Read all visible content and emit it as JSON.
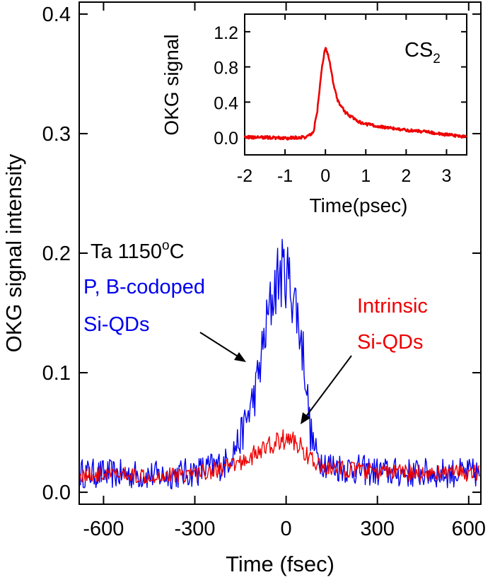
{
  "chart_data": [
    {
      "type": "line",
      "xlabel": "Time (fsec)",
      "ylabel": "OKG signal intensity",
      "xlim": [
        -680,
        640
      ],
      "ylim": [
        -0.01,
        0.41
      ],
      "xticks": [
        -600,
        -300,
        0,
        300,
        600
      ],
      "yticks": [
        0.0,
        0.1,
        0.2,
        0.3,
        0.4
      ],
      "xtick_labels": [
        "-600",
        "-300",
        "0",
        "300",
        "600"
      ],
      "ytick_labels": [
        "0.0",
        "0.1",
        "0.2",
        "0.3",
        "0.4"
      ],
      "annotations": {
        "sample": "Ta 1150",
        "sample_sup": "o",
        "sample_unit": "C",
        "blue_line1": "P, B-codoped",
        "blue_line2": "Si-QDs",
        "red_line1": "Intrinsic",
        "red_line2": "Si-QDs"
      },
      "series": [
        {
          "color": "#0000ee",
          "envelope": {
            "x": [
              -680,
              -400,
              -300,
              -200,
              -150,
              -100,
              -60,
              -30,
              0,
              30,
              60,
              80,
              100,
              150,
              200,
              300,
              400,
              500,
              640
            ],
            "y": [
              0.016,
              0.014,
              0.017,
              0.024,
              0.045,
              0.085,
              0.145,
              0.18,
              0.185,
              0.16,
              0.11,
              0.05,
              0.03,
              0.022,
              0.02,
              0.017,
              0.016,
              0.016,
              0.016
            ]
          },
          "noise": 0.018
        },
        {
          "color": "#ee0000",
          "envelope": {
            "x": [
              -680,
              -400,
              -300,
              -200,
              -150,
              -100,
              -60,
              -30,
              0,
              30,
              60,
              80,
              100,
              150,
              200,
              300,
              400,
              500,
              640
            ],
            "y": [
              0.015,
              0.014,
              0.016,
              0.02,
              0.025,
              0.032,
              0.038,
              0.042,
              0.045,
              0.042,
              0.035,
              0.028,
              0.022,
              0.02,
              0.019,
              0.017,
              0.016,
              0.016,
              0.016
            ]
          },
          "noise": 0.01
        }
      ]
    },
    {
      "type": "line",
      "title": "CS",
      "title_sub": "2",
      "xlabel": "Time(psec)",
      "ylabel": "OKG signal",
      "xlim": [
        -2.0,
        3.5
      ],
      "ylim": [
        -0.2,
        1.4
      ],
      "xticks": [
        -2,
        -1,
        0,
        1,
        2,
        3
      ],
      "yticks": [
        0.0,
        0.4,
        0.8,
        1.2
      ],
      "xtick_labels": [
        "-2",
        "-1",
        "0",
        "1",
        "2",
        "3"
      ],
      "ytick_labels": [
        "0.0",
        "0.4",
        "0.8",
        "1.2"
      ],
      "series": [
        {
          "color": "#ee0000",
          "x": [
            -2.0,
            -1.5,
            -1.0,
            -0.5,
            -0.3,
            -0.2,
            -0.1,
            0.0,
            0.1,
            0.2,
            0.3,
            0.5,
            0.8,
            1.0,
            1.5,
            2.0,
            2.5,
            3.0,
            3.5
          ],
          "y": [
            0.0,
            0.0,
            -0.01,
            0.0,
            0.05,
            0.3,
            0.75,
            1.03,
            0.88,
            0.6,
            0.42,
            0.28,
            0.18,
            0.15,
            0.11,
            0.08,
            0.06,
            0.03,
            0.0
          ]
        }
      ]
    }
  ]
}
